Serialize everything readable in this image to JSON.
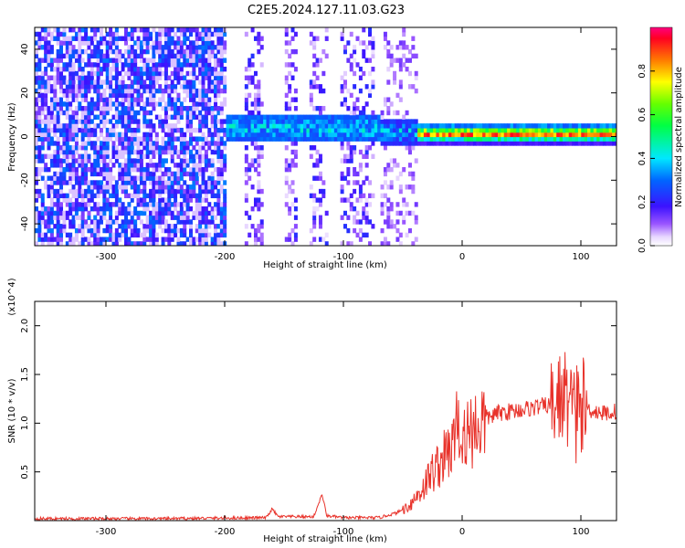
{
  "title": "C2E5.2024.127.11.03.G23",
  "chart_data": [
    {
      "type": "heatmap",
      "title": "",
      "xlabel": "Height of straight line (km)",
      "ylabel": "Frequency (Hz)",
      "xlim": [
        -360,
        130
      ],
      "ylim": [
        -50,
        50
      ],
      "xticks": [
        -300,
        -200,
        -100,
        0,
        100
      ],
      "yticks": [
        -40,
        -20,
        0,
        20,
        40
      ],
      "colorbar": {
        "label": "Normalized spectral amplitude",
        "range": [
          0.0,
          1.0
        ],
        "ticks": [
          0.0,
          0.2,
          0.4,
          0.6,
          0.8
        ],
        "tick_labels": [
          "0.0",
          "0.2",
          "0.4",
          "0.6",
          "0.8"
        ],
        "colormap": "rainbow"
      },
      "regions": [
        {
          "x_range": [
            -360,
            -200
          ],
          "description": "broadband noise",
          "level": 0.25
        },
        {
          "x_range": [
            -200,
            -70
          ],
          "center_freq": 3,
          "level": 0.45
        },
        {
          "x_range": [
            -70,
            -40
          ],
          "center_freq": 0,
          "level": 0.5
        },
        {
          "x_range": [
            -40,
            130
          ],
          "center_freq": 0,
          "level": 0.9
        }
      ]
    },
    {
      "type": "line",
      "title": "",
      "xlabel": "Height of straight line (km)",
      "ylabel": "SNR (10 * v/v)",
      "y_multiplier": "(x10^4)",
      "xlim": [
        -360,
        130
      ],
      "ylim": [
        0,
        2.25
      ],
      "xticks": [
        -300,
        -200,
        -100,
        0,
        100
      ],
      "yticks": [
        0.5,
        1.0,
        1.5,
        2.0
      ],
      "ytick_labels": [
        "0.5",
        "1.0",
        "1.5",
        "2.0"
      ],
      "series": [
        {
          "color": "#e8322a",
          "x": [
            -360,
            -250,
            -165,
            -160,
            -155,
            -125,
            -118,
            -114,
            -100,
            -70,
            -55,
            -45,
            -35,
            -25,
            -15,
            -5,
            0,
            10,
            20,
            30,
            40,
            50,
            60,
            70,
            80,
            85,
            90,
            95,
            100,
            105,
            110,
            120,
            130
          ],
          "y": [
            0.02,
            0.02,
            0.03,
            0.12,
            0.04,
            0.04,
            0.27,
            0.05,
            0.03,
            0.03,
            0.08,
            0.15,
            0.3,
            0.5,
            0.65,
            0.8,
            0.9,
            0.95,
            1.05,
            1.1,
            1.12,
            1.14,
            1.16,
            1.18,
            1.2,
            1.3,
            1.22,
            1.18,
            1.2,
            1.15,
            1.13,
            1.1,
            1.12
          ]
        }
      ]
    }
  ]
}
